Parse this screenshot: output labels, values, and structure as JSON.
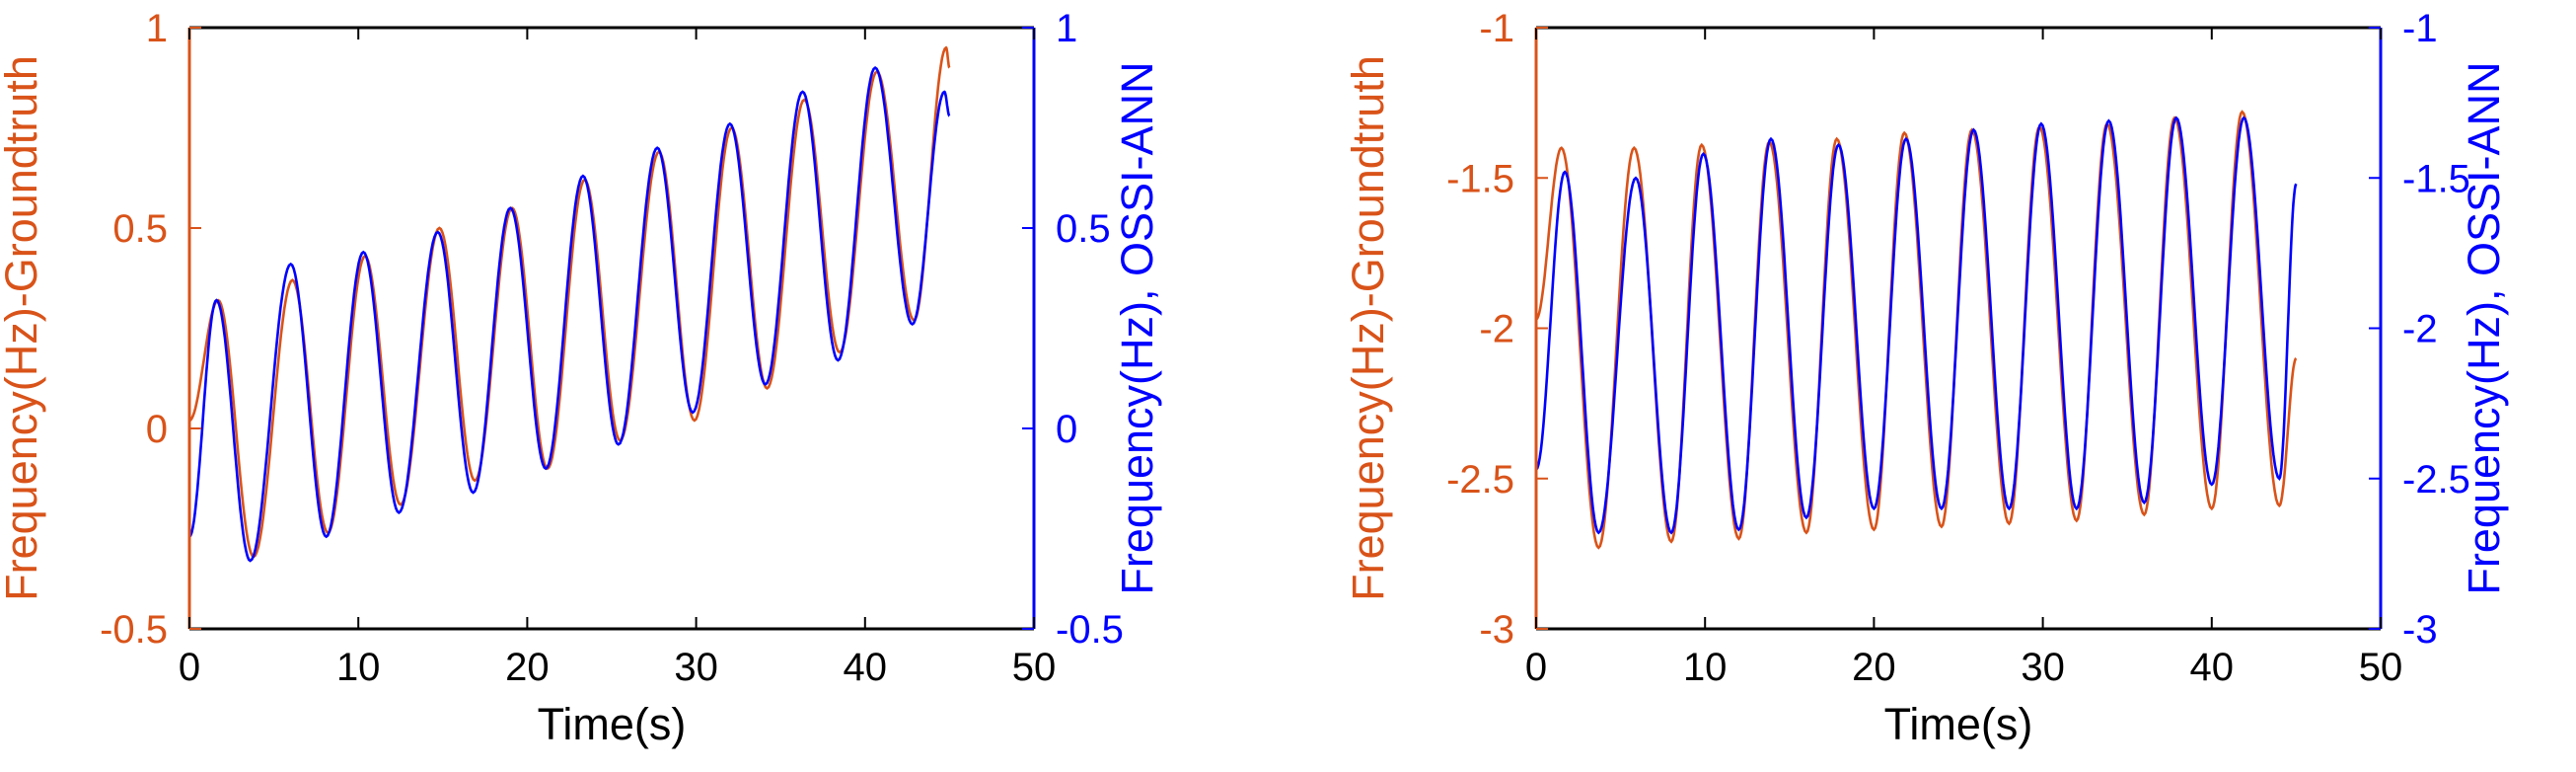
{
  "colors": {
    "groundtruth": "#D95319",
    "ann": "#0000FF",
    "axis": "#000000"
  },
  "chart_data": [
    {
      "type": "line",
      "title": "",
      "xlabel": "Time(s)",
      "ylabel_left": "Frequency(Hz)-Groundtruth",
      "ylabel_right": "Frequency(Hz), OSSI-ANN",
      "xlim": [
        0,
        50
      ],
      "ylim_left": [
        -0.5,
        1
      ],
      "ylim_right": [
        -0.5,
        1
      ],
      "xticks": [
        "0",
        "10",
        "20",
        "30",
        "40",
        "50"
      ],
      "yticks_left": [
        "-0.5",
        "0",
        "0.5",
        "1"
      ],
      "yticks_right": [
        "-0.5",
        "0",
        "0.5",
        "1"
      ],
      "grid": false,
      "series": [
        {
          "axis": "left",
          "color": "groundtruth",
          "peaks": [
            [
              0,
              0.02
            ],
            [
              1.7,
              0.32
            ],
            [
              3.8,
              -0.32
            ],
            [
              6.1,
              0.37
            ],
            [
              8.2,
              -0.26
            ],
            [
              10.4,
              0.43
            ],
            [
              12.5,
              -0.19
            ],
            [
              14.8,
              0.5
            ],
            [
              16.9,
              -0.13
            ],
            [
              19.1,
              0.55
            ],
            [
              21.2,
              -0.1
            ],
            [
              23.4,
              0.62
            ],
            [
              25.5,
              -0.03
            ],
            [
              27.8,
              0.69
            ],
            [
              29.9,
              0.02
            ],
            [
              32.1,
              0.75
            ],
            [
              34.2,
              0.1
            ],
            [
              36.4,
              0.82
            ],
            [
              38.5,
              0.19
            ],
            [
              40.7,
              0.89
            ],
            [
              42.9,
              0.27
            ],
            [
              44.8,
              0.95
            ],
            [
              45,
              0.9
            ]
          ]
        },
        {
          "axis": "right",
          "color": "ann",
          "peaks": [
            [
              0,
              -0.27
            ],
            [
              1.6,
              0.32
            ],
            [
              3.6,
              -0.33
            ],
            [
              6.0,
              0.41
            ],
            [
              8.1,
              -0.27
            ],
            [
              10.3,
              0.44
            ],
            [
              12.4,
              -0.21
            ],
            [
              14.7,
              0.49
            ],
            [
              16.8,
              -0.16
            ],
            [
              19.0,
              0.55
            ],
            [
              21.1,
              -0.1
            ],
            [
              23.3,
              0.63
            ],
            [
              25.4,
              -0.04
            ],
            [
              27.7,
              0.7
            ],
            [
              29.8,
              0.04
            ],
            [
              32.0,
              0.76
            ],
            [
              34.1,
              0.11
            ],
            [
              36.3,
              0.84
            ],
            [
              38.4,
              0.17
            ],
            [
              40.6,
              0.9
            ],
            [
              42.8,
              0.26
            ],
            [
              44.7,
              0.84
            ],
            [
              45,
              0.78
            ]
          ]
        }
      ]
    },
    {
      "type": "line",
      "title": "",
      "xlabel": "Time(s)",
      "ylabel_left": "Frequency(Hz)-Groundtruth",
      "ylabel_right": "Frequency(Hz), OSSI-ANN",
      "xlim": [
        0,
        50
      ],
      "ylim_left": [
        -3,
        -1
      ],
      "ylim_right": [
        -3,
        -1
      ],
      "xticks": [
        "0",
        "10",
        "20",
        "30",
        "40",
        "50"
      ],
      "yticks_left": [
        "-3",
        "-2.5",
        "-2",
        "-1.5",
        "-1"
      ],
      "yticks_right": [
        "-3",
        "-2.5",
        "-2",
        "-1.5",
        "-1"
      ],
      "grid": false,
      "series": [
        {
          "axis": "left",
          "color": "groundtruth",
          "peaks": [
            [
              0,
              -1.97
            ],
            [
              1.5,
              -1.4
            ],
            [
              3.7,
              -2.73
            ],
            [
              5.8,
              -1.4
            ],
            [
              8.0,
              -2.71
            ],
            [
              9.8,
              -1.39
            ],
            [
              12.0,
              -2.7
            ],
            [
              13.8,
              -1.38
            ],
            [
              16.0,
              -2.68
            ],
            [
              17.8,
              -1.37
            ],
            [
              20.0,
              -2.67
            ],
            [
              21.8,
              -1.35
            ],
            [
              24.0,
              -2.66
            ],
            [
              25.8,
              -1.34
            ],
            [
              28.0,
              -2.65
            ],
            [
              29.8,
              -1.33
            ],
            [
              32.0,
              -2.64
            ],
            [
              33.8,
              -1.32
            ],
            [
              36.0,
              -2.62
            ],
            [
              37.8,
              -1.3
            ],
            [
              40.0,
              -2.6
            ],
            [
              41.8,
              -1.28
            ],
            [
              44.0,
              -2.59
            ],
            [
              45,
              -2.1
            ]
          ]
        },
        {
          "axis": "right",
          "color": "ann",
          "peaks": [
            [
              0,
              -2.47
            ],
            [
              1.7,
              -1.48
            ],
            [
              3.7,
              -2.68
            ],
            [
              5.9,
              -1.5
            ],
            [
              8.0,
              -2.68
            ],
            [
              9.9,
              -1.42
            ],
            [
              12.0,
              -2.67
            ],
            [
              13.9,
              -1.37
            ],
            [
              16.0,
              -2.63
            ],
            [
              17.9,
              -1.39
            ],
            [
              20.0,
              -2.6
            ],
            [
              21.9,
              -1.37
            ],
            [
              24.0,
              -2.6
            ],
            [
              25.9,
              -1.34
            ],
            [
              28.0,
              -2.6
            ],
            [
              29.9,
              -1.32
            ],
            [
              32.0,
              -2.6
            ],
            [
              33.9,
              -1.31
            ],
            [
              36.0,
              -2.58
            ],
            [
              37.9,
              -1.3
            ],
            [
              40.0,
              -2.52
            ],
            [
              41.9,
              -1.3
            ],
            [
              44.0,
              -2.5
            ],
            [
              45,
              -1.52
            ]
          ]
        }
      ]
    }
  ]
}
